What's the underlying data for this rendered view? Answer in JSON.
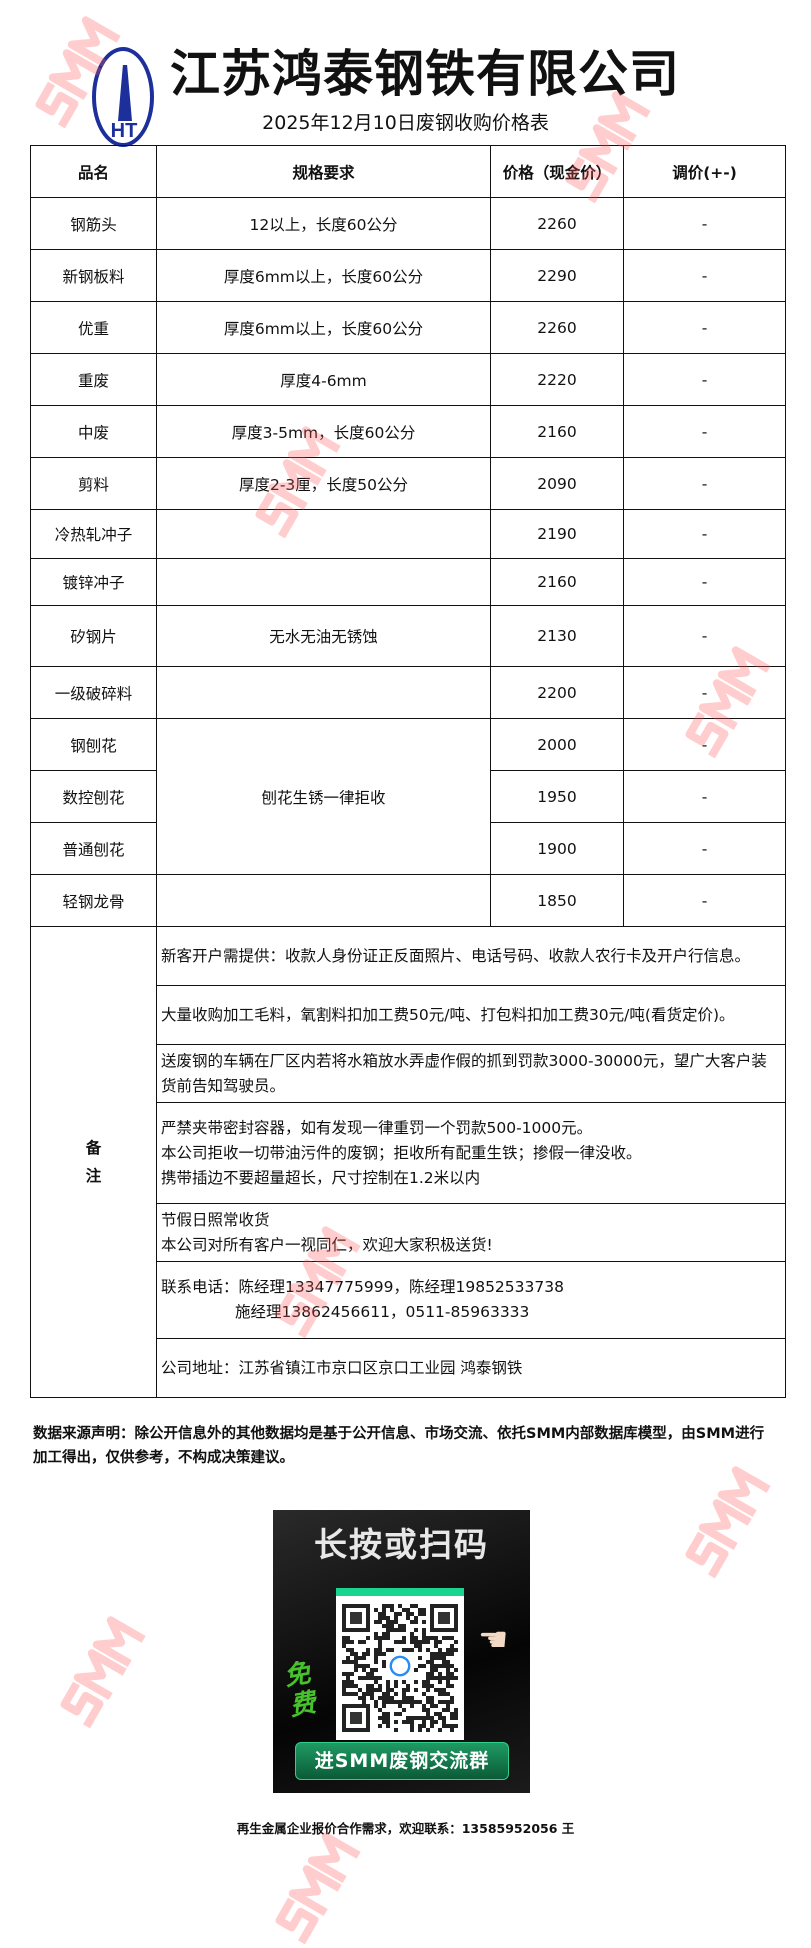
{
  "header": {
    "company": "江苏鸿泰钢铁有限公司",
    "logo_text": "HT",
    "subtitle": "2025年12月10日废钢收购价格表"
  },
  "table": {
    "columns": [
      "品名",
      "规格要求",
      "价格（现金价）",
      "调价(+-)"
    ],
    "rows": [
      {
        "name": "钢筋头",
        "spec": "12以上，长度60公分",
        "price": "2260",
        "change": "-"
      },
      {
        "name": "新钢板料",
        "spec": "厚度6mm以上，长度60公分",
        "price": "2290",
        "change": "-"
      },
      {
        "name": "优重",
        "spec": "厚度6mm以上，长度60公分",
        "price": "2260",
        "change": "-"
      },
      {
        "name": "重废",
        "spec": "厚度4-6mm",
        "price": "2220",
        "change": "-"
      },
      {
        "name": "中废",
        "spec": "厚度3-5mm，长度60公分",
        "price": "2160",
        "change": "-"
      },
      {
        "name": "剪料",
        "spec": "厚度2-3厘，长度50公分",
        "price": "2090",
        "change": "-"
      },
      {
        "name": "冷热轧冲子",
        "spec": "",
        "price": "2190",
        "change": "-"
      },
      {
        "name": "镀锌冲子",
        "spec": "",
        "price": "2160",
        "change": "-"
      },
      {
        "name": "矽钢片",
        "spec": "无水无油无锈蚀",
        "price": "2130",
        "change": "-"
      },
      {
        "name": "一级破碎料",
        "spec": "",
        "price": "2200",
        "change": "-"
      },
      {
        "name": "钢刨花",
        "spec": "刨花生锈一律拒收",
        "price": "2000",
        "change": "-"
      },
      {
        "name": "数控刨花",
        "price": "1950",
        "change": "-"
      },
      {
        "name": "普通刨花",
        "price": "1900",
        "change": "-"
      },
      {
        "name": "轻钢龙骨",
        "spec": "",
        "price": "1850",
        "change": "-"
      }
    ],
    "remarks_label": [
      "备",
      "注"
    ],
    "remarks": [
      [
        "新客开户需提供：收款人身份证正反面照片、电话号码、收款人农行卡及开户行信息。"
      ],
      [
        "大量收购加工毛料，氧割料扣加工费50元/吨、打包料扣加工费30元/吨(看货定价)。"
      ],
      [
        "送废钢的车辆在厂区内若将水箱放水弄虚作假的抓到罚款3000-30000元，望广大客户装货前告知驾驶员。"
      ],
      [
        "严禁夹带密封容器，如有发现一律重罚一个罚款500-1000元。",
        "本公司拒收一切带油污件的废钢；拒收所有配重生铁；掺假一律没收。",
        "携带插边不要超量超长，尺寸控制在1.2米以内"
      ],
      [
        "节假日照常收货",
        "本公司对所有客户一视同仁，欢迎大家积极送货!"
      ],
      [
        "联系电话：陈经理13347775999，陈经理19852533738",
        "施经理13862456611，0511-85963333"
      ],
      [
        "公司地址：江苏省镇江市京口区京口工业园 鸿泰钢铁"
      ]
    ]
  },
  "disclaimer": "数据来源声明：除公开信息外的其他数据均是基于公开信息、市场交流、依托SMM内部数据库模型，由SMM进行加工得出，仅供参考，不构成决策建议。",
  "promo": {
    "headline": "长按或扫码",
    "free": "免费",
    "button": "进SMM废钢交流群"
  },
  "footer": "再生金属企业报价合作需求，欢迎联系：13585952056 王",
  "watermark": "SMM",
  "colors": {
    "logo_blue": "#1c2f9a",
    "watermark_red": "#ff5a5a",
    "promo_green": "#19d48f"
  }
}
